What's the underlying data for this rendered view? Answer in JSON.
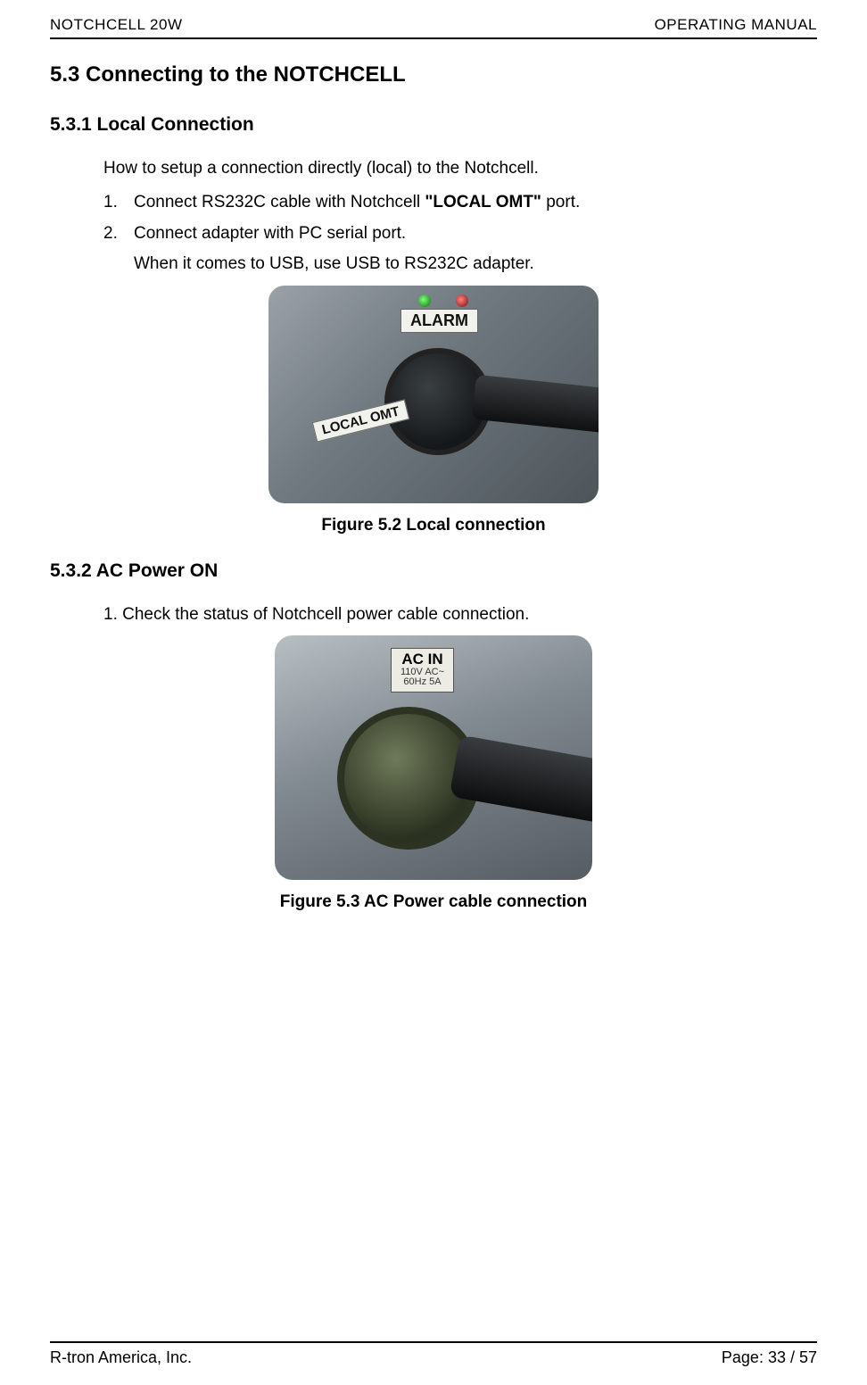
{
  "header": {
    "left": "NOTCHCELL 20W",
    "right": "OPERATING  MANUAL"
  },
  "section": {
    "h1": "5.3 Connecting to the NOTCHCELL",
    "sub1": {
      "title": "5.3.1 Local Connection",
      "intro": "How to setup a connection directly (local) to the Notchcell.",
      "items": [
        {
          "num": "1.",
          "pre": "Connect RS232C cable with Notchcell ",
          "bold": "\"LOCAL OMT\"",
          "post": " port."
        },
        {
          "num": "2.",
          "pre": "Connect adapter with PC serial port.",
          "bold": "",
          "post": ""
        }
      ],
      "subline": "When it comes to USB, use USB to RS232C adapter.",
      "figure": {
        "alarm": "ALARM",
        "local": "LOCAL OMT",
        "caption": "Figure 5.2 Local connection"
      }
    },
    "sub2": {
      "title": "5.3.2 AC Power ON",
      "line": "1. Check the status of Notchcell power cable connection.",
      "figure": {
        "ac_big": "AC IN",
        "ac_small1": "110V AC~",
        "ac_small2": "60Hz 5A",
        "caption": "Figure 5.3 AC Power cable connection"
      }
    }
  },
  "footer": {
    "left": "R-tron America, Inc.",
    "right": "Page: 33 / 57"
  }
}
